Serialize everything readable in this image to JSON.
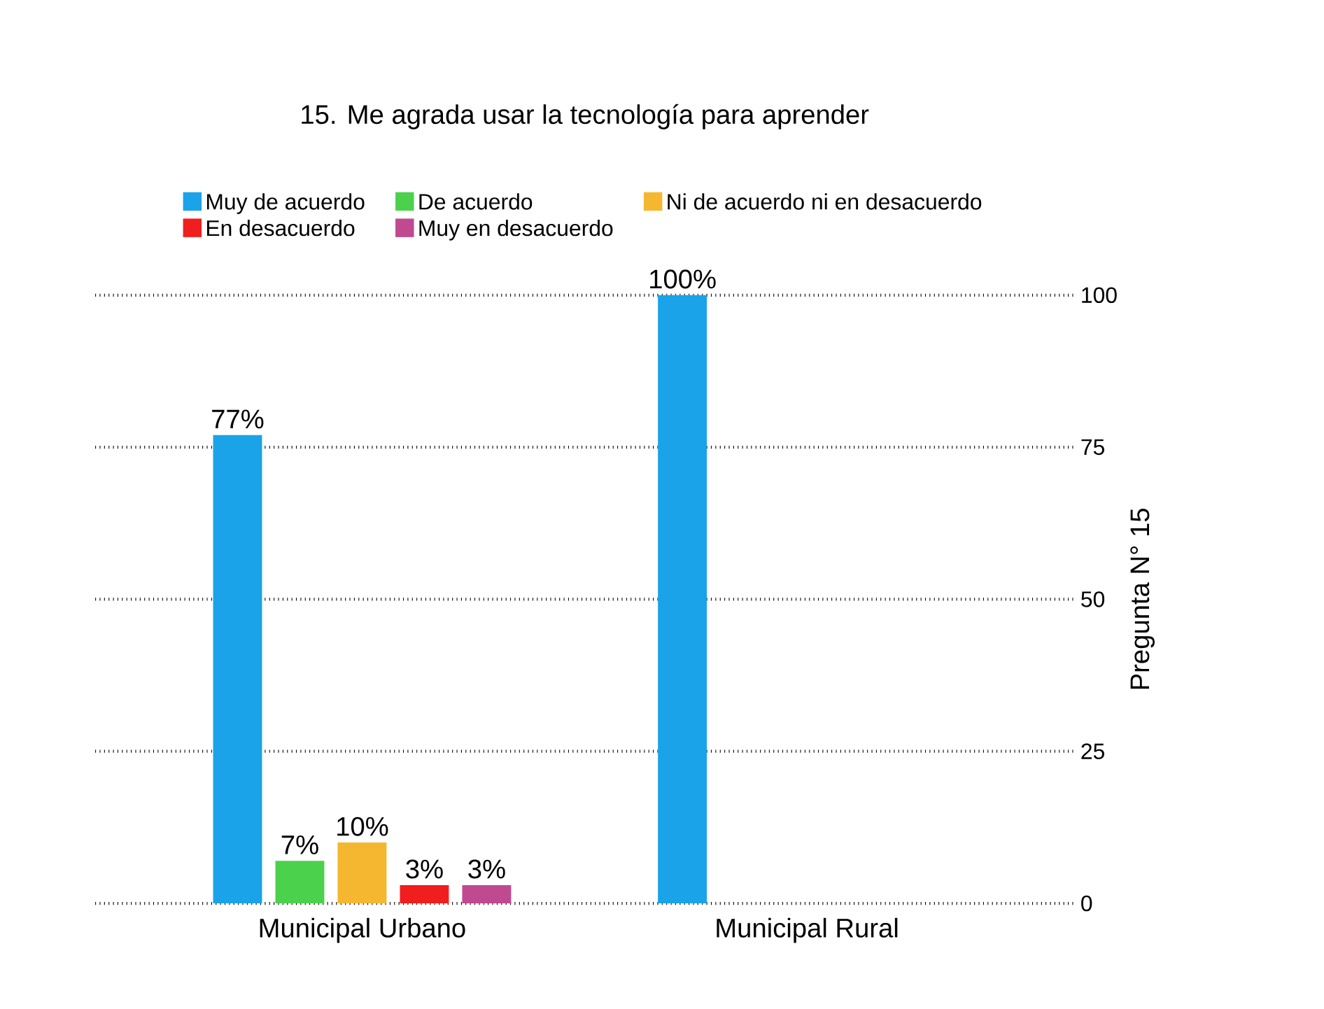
{
  "chart_data": {
    "type": "bar",
    "title": "15. Me agrada usar la tecnología para aprender",
    "ylabel": "Pregunta N° 15",
    "categories": [
      "Municipal Urbano",
      "Municipal Rural"
    ],
    "series": [
      {
        "name": "Muy de acuerdo",
        "color": "#1aa3e8",
        "values": [
          77,
          100
        ],
        "value_labels": [
          "77%",
          "100%"
        ]
      },
      {
        "name": "De acuerdo",
        "color": "#4cd14c",
        "values": [
          7,
          null
        ],
        "value_labels": [
          "7%",
          null
        ]
      },
      {
        "name": "Ni de acuerdo ni en desacuerdo",
        "color": "#f5b730",
        "values": [
          10,
          null
        ],
        "value_labels": [
          "10%",
          null
        ]
      },
      {
        "name": "En desacuerdo",
        "color": "#f01e1e",
        "values": [
          3,
          null
        ],
        "value_labels": [
          "3%",
          null
        ]
      },
      {
        "name": "Muy en desacuerdo",
        "color": "#c04a8f",
        "values": [
          3,
          null
        ],
        "value_labels": [
          "3%",
          null
        ]
      }
    ],
    "ylim": [
      0,
      100
    ],
    "yticks": [
      0,
      25,
      50,
      75,
      100
    ],
    "grid": "y",
    "legend": "top"
  }
}
